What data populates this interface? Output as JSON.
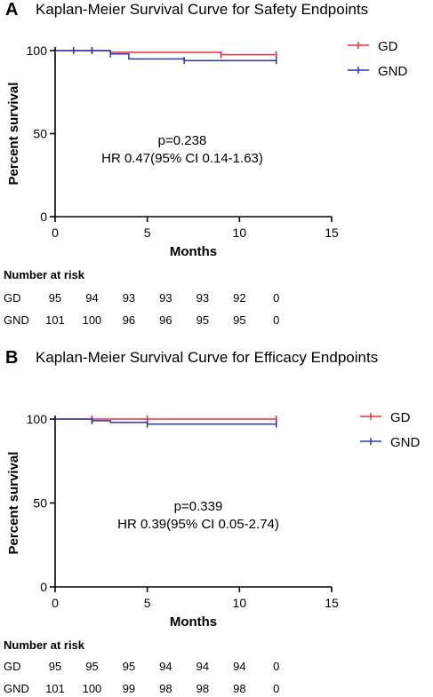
{
  "chart_data": [
    {
      "panel_label": "A",
      "type": "line",
      "title": "Kaplan-Meier Survival Curve for Safety Endpoints",
      "xlabel": "Months",
      "ylabel": "Percent survival",
      "xlim": [
        0,
        15
      ],
      "ylim": [
        0,
        100
      ],
      "xticks": [
        0,
        5,
        10,
        15
      ],
      "yticks": [
        0,
        50,
        100
      ],
      "legend_position": "top-right",
      "series": [
        {
          "name": "GD",
          "color": "#e8303a",
          "steps": [
            [
              0,
              100
            ],
            [
              1,
              100
            ],
            [
              3,
              99
            ],
            [
              9,
              97.5
            ],
            [
              12,
              97.5
            ]
          ],
          "censors": [
            [
              1,
              100
            ],
            [
              2,
              100
            ],
            [
              9,
              97.5
            ],
            [
              12,
              97.5
            ]
          ]
        },
        {
          "name": "GND",
          "color": "#2b35b0",
          "steps": [
            [
              0,
              100
            ],
            [
              3,
              98
            ],
            [
              4,
              95
            ],
            [
              7,
              94
            ],
            [
              12,
              94
            ]
          ],
          "censors": [
            [
              1,
              100
            ],
            [
              2,
              100
            ],
            [
              3,
              98
            ],
            [
              7,
              94
            ],
            [
              12,
              94
            ]
          ]
        }
      ],
      "annotation": [
        "p=0.238",
        "HR 0.47(95% CI 0.14-1.63)"
      ],
      "risk_table": {
        "heading": "Number at risk",
        "times": [
          0,
          2,
          4,
          6,
          8,
          10,
          12
        ],
        "rows": [
          {
            "label": "GD",
            "values": [
              "95",
              "94",
              "93",
              "93",
              "93",
              "92",
              "0"
            ]
          },
          {
            "label": "GND",
            "values": [
              "101",
              "100",
              "96",
              "96",
              "95",
              "95",
              "0"
            ]
          }
        ]
      }
    },
    {
      "panel_label": "B",
      "type": "line",
      "title": "Kaplan-Meier Survival Curve for Efficacy Endpoints",
      "xlabel": "Months",
      "ylabel": "Percent survival",
      "xlim": [
        0,
        15
      ],
      "ylim": [
        0,
        100
      ],
      "xticks": [
        0,
        5,
        10,
        15
      ],
      "yticks": [
        0,
        50,
        100
      ],
      "legend_position": "top-right",
      "series": [
        {
          "name": "GD",
          "color": "#e8303a",
          "steps": [
            [
              0,
              100
            ],
            [
              12,
              100
            ]
          ],
          "censors": [
            [
              2,
              100
            ],
            [
              5,
              100
            ],
            [
              12,
              100
            ]
          ]
        },
        {
          "name": "GND",
          "color": "#2b35b0",
          "steps": [
            [
              0,
              100
            ],
            [
              2,
              99
            ],
            [
              3,
              98
            ],
            [
              5,
              97
            ],
            [
              12,
              97
            ]
          ],
          "censors": [
            [
              2,
              99
            ],
            [
              5,
              97
            ],
            [
              12,
              97
            ]
          ]
        }
      ],
      "annotation": [
        "p=0.339",
        "HR 0.39(95% CI 0.05-2.74)"
      ],
      "risk_table": {
        "heading": "Number at risk",
        "times": [
          0,
          2,
          4,
          6,
          8,
          10,
          12
        ],
        "rows": [
          {
            "label": "GD",
            "values": [
              "95",
              "95",
              "95",
              "94",
              "94",
              "94",
              "0"
            ]
          },
          {
            "label": "GND",
            "values": [
              "101",
              "100",
              "99",
              "98",
              "98",
              "98",
              "0"
            ]
          }
        ]
      }
    }
  ]
}
